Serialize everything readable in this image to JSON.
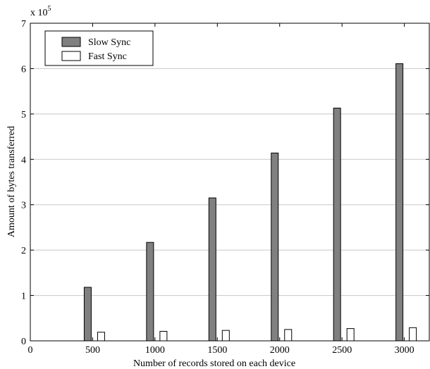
{
  "chart_data": {
    "type": "bar",
    "title": "",
    "xlabel": "Number of records stored on each device",
    "ylabel": "Amount of bytes transferred",
    "y_scale_label": "x 10",
    "y_scale_exponent": "5",
    "x_ticks": [
      0,
      500,
      1000,
      1500,
      2000,
      2500,
      3000
    ],
    "y_ticks": [
      0,
      1,
      2,
      3,
      4,
      5,
      6,
      7
    ],
    "xlim": [
      0,
      3200
    ],
    "ylim": [
      0,
      7
    ],
    "grid": true,
    "legend_position": "top-left",
    "x": [
      500,
      1000,
      1500,
      2000,
      2500,
      3000
    ],
    "series": [
      {
        "name": "Slow Sync",
        "color": "#808080",
        "values": [
          1.18,
          2.17,
          3.15,
          4.14,
          5.13,
          6.11
        ]
      },
      {
        "name": "Fast Sync",
        "color": "#ffffff",
        "values": [
          0.19,
          0.21,
          0.23,
          0.25,
          0.27,
          0.29
        ]
      }
    ]
  }
}
